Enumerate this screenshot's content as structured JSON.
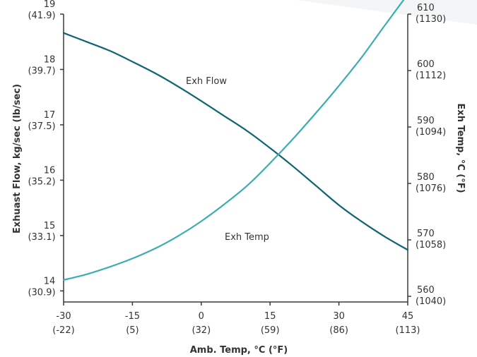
{
  "chart_data": {
    "type": "line",
    "xlabel": "Amb. Temp, °C (°F)",
    "ylabel_left": "Exhuast Flow, kg/sec (lb/sec)",
    "ylabel_right": "Exh Temp, °C (°F)",
    "xlim": [
      -30,
      45
    ],
    "ylim_left": [
      13.8,
      19
    ],
    "ylim_right": [
      559,
      610
    ],
    "x_ticks": [
      {
        "value": -30,
        "label": "-30",
        "sublabel": "(-22)"
      },
      {
        "value": -15,
        "label": "-15",
        "sublabel": "(5)"
      },
      {
        "value": 0,
        "label": "0",
        "sublabel": "(32)"
      },
      {
        "value": 15,
        "label": "15",
        "sublabel": "(59)"
      },
      {
        "value": 30,
        "label": "30",
        "sublabel": "(86)"
      },
      {
        "value": 45,
        "label": "45",
        "sublabel": "(113)"
      }
    ],
    "left_ticks": [
      {
        "value": 19,
        "label": "19",
        "sublabel": "(41.9)"
      },
      {
        "value": 18,
        "label": "18",
        "sublabel": "(39.7)"
      },
      {
        "value": 17,
        "label": "17",
        "sublabel": "(37.5)"
      },
      {
        "value": 16,
        "label": "16",
        "sublabel": "(35.2)"
      },
      {
        "value": 15,
        "label": "15",
        "sublabel": "(33.1)"
      },
      {
        "value": 14,
        "label": "14",
        "sublabel": "(30.9)"
      }
    ],
    "right_ticks": [
      {
        "value": 610,
        "label": "610",
        "sublabel": "(1130)"
      },
      {
        "value": 600,
        "label": "600",
        "sublabel": "(1112)"
      },
      {
        "value": 590,
        "label": "590",
        "sublabel": "(1094)"
      },
      {
        "value": 580,
        "label": "580",
        "sublabel": "(1076)"
      },
      {
        "value": 570,
        "label": "570",
        "sublabel": "(1058)"
      },
      {
        "value": 560,
        "label": "560",
        "sublabel": "(1040)"
      }
    ],
    "series": [
      {
        "name": "Exh Flow",
        "axis": "left",
        "color": "#0e6472",
        "x": [
          -30,
          -25,
          -20,
          -15,
          -10,
          -5,
          0,
          5,
          10,
          15,
          20,
          25,
          30,
          35,
          40,
          45
        ],
        "values": [
          18.66,
          18.5,
          18.34,
          18.14,
          17.93,
          17.69,
          17.43,
          17.16,
          16.89,
          16.58,
          16.25,
          15.9,
          15.55,
          15.25,
          14.98,
          14.74
        ]
      },
      {
        "name": "Exh Temp",
        "axis": "right",
        "color": "#3aaeb0",
        "x": [
          -30,
          -25,
          -20,
          -15,
          -10,
          -5,
          0,
          5,
          10,
          15,
          20,
          25,
          30,
          35,
          40,
          45
        ],
        "values": [
          562.9,
          563.9,
          565.2,
          566.7,
          568.5,
          570.7,
          573.3,
          576.3,
          579.6,
          583.6,
          587.9,
          592.5,
          597.3,
          602.4,
          608.0,
          613.5
        ]
      }
    ]
  }
}
